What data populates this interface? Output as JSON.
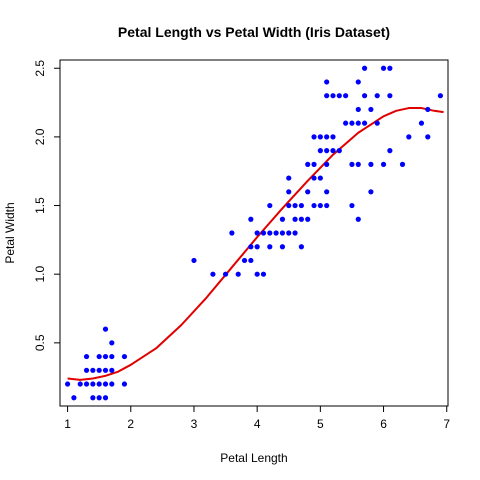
{
  "chart_data": {
    "type": "scatter",
    "title": "Petal Length vs Petal Width (Iris Dataset)",
    "xlabel": "Petal Length",
    "ylabel": "Petal Width",
    "xlim": [
      0.88,
      7.02
    ],
    "ylim": [
      0.04,
      2.56
    ],
    "xticks": [
      1,
      2,
      3,
      4,
      5,
      6,
      7
    ],
    "yticks": [
      0.5,
      1.0,
      1.5,
      2.0,
      2.5
    ],
    "ytick_labels": [
      "0.5",
      "1.0",
      "1.5",
      "2.0",
      "2.5"
    ],
    "grid": false,
    "point_color": "#0000ff",
    "line_color": "#e00000",
    "points": [
      [
        1.0,
        0.2
      ],
      [
        1.1,
        0.1
      ],
      [
        1.2,
        0.2
      ],
      [
        1.3,
        0.2
      ],
      [
        1.3,
        0.3
      ],
      [
        1.3,
        0.4
      ],
      [
        1.4,
        0.2
      ],
      [
        1.4,
        0.3
      ],
      [
        1.4,
        0.1
      ],
      [
        1.5,
        0.2
      ],
      [
        1.5,
        0.1
      ],
      [
        1.5,
        0.4
      ],
      [
        1.5,
        0.3
      ],
      [
        1.6,
        0.2
      ],
      [
        1.6,
        0.4
      ],
      [
        1.6,
        0.6
      ],
      [
        1.6,
        0.1
      ],
      [
        1.7,
        0.2
      ],
      [
        1.7,
        0.4
      ],
      [
        1.7,
        0.5
      ],
      [
        1.7,
        0.3
      ],
      [
        1.9,
        0.2
      ],
      [
        1.9,
        0.4
      ],
      [
        1.6,
        0.3
      ],
      [
        3.0,
        1.1
      ],
      [
        3.3,
        1.0
      ],
      [
        3.5,
        1.0
      ],
      [
        3.6,
        1.3
      ],
      [
        3.7,
        1.0
      ],
      [
        3.8,
        1.1
      ],
      [
        3.9,
        1.1
      ],
      [
        3.9,
        1.2
      ],
      [
        3.9,
        1.4
      ],
      [
        4.0,
        1.0
      ],
      [
        4.0,
        1.2
      ],
      [
        4.0,
        1.3
      ],
      [
        4.1,
        1.0
      ],
      [
        4.1,
        1.3
      ],
      [
        4.2,
        1.2
      ],
      [
        4.2,
        1.3
      ],
      [
        4.2,
        1.5
      ],
      [
        4.3,
        1.3
      ],
      [
        4.4,
        1.2
      ],
      [
        4.4,
        1.3
      ],
      [
        4.4,
        1.4
      ],
      [
        4.5,
        1.3
      ],
      [
        4.5,
        1.5
      ],
      [
        4.5,
        1.6
      ],
      [
        4.5,
        1.7
      ],
      [
        4.6,
        1.3
      ],
      [
        4.6,
        1.4
      ],
      [
        4.6,
        1.5
      ],
      [
        4.7,
        1.2
      ],
      [
        4.7,
        1.4
      ],
      [
        4.7,
        1.5
      ],
      [
        4.8,
        1.4
      ],
      [
        4.8,
        1.8
      ],
      [
        4.8,
        1.6
      ],
      [
        4.9,
        1.5
      ],
      [
        4.9,
        1.8
      ],
      [
        4.9,
        2.0
      ],
      [
        5.0,
        1.5
      ],
      [
        5.0,
        1.7
      ],
      [
        5.0,
        2.0
      ],
      [
        5.1,
        1.5
      ],
      [
        5.1,
        1.6
      ],
      [
        5.1,
        1.8
      ],
      [
        5.1,
        1.9
      ],
      [
        5.1,
        2.0
      ],
      [
        5.1,
        2.3
      ],
      [
        5.1,
        2.4
      ],
      [
        5.2,
        2.0
      ],
      [
        5.2,
        2.3
      ],
      [
        5.3,
        1.9
      ],
      [
        5.3,
        2.3
      ],
      [
        5.4,
        2.1
      ],
      [
        5.4,
        2.3
      ],
      [
        5.5,
        1.8
      ],
      [
        5.5,
        2.1
      ],
      [
        5.5,
        1.5
      ],
      [
        5.6,
        1.4
      ],
      [
        5.6,
        1.8
      ],
      [
        5.6,
        2.1
      ],
      [
        5.6,
        2.2
      ],
      [
        5.6,
        2.4
      ],
      [
        5.7,
        2.1
      ],
      [
        5.7,
        2.3
      ],
      [
        5.7,
        2.5
      ],
      [
        5.8,
        1.8
      ],
      [
        5.8,
        2.2
      ],
      [
        5.8,
        1.6
      ],
      [
        5.9,
        2.1
      ],
      [
        5.9,
        2.3
      ],
      [
        6.0,
        1.8
      ],
      [
        6.0,
        2.5
      ],
      [
        6.1,
        1.9
      ],
      [
        6.1,
        2.3
      ],
      [
        6.1,
        2.5
      ],
      [
        6.3,
        1.8
      ],
      [
        6.4,
        2.0
      ],
      [
        6.6,
        2.1
      ],
      [
        6.7,
        2.0
      ],
      [
        6.7,
        2.2
      ],
      [
        6.9,
        2.3
      ],
      [
        5.0,
        1.9
      ],
      [
        5.2,
        1.9
      ],
      [
        4.9,
        1.7
      ]
    ],
    "fit_line": {
      "x": [
        1.0,
        1.2,
        1.4,
        1.6,
        1.8,
        2.0,
        2.4,
        2.8,
        3.2,
        3.6,
        4.0,
        4.4,
        4.8,
        5.2,
        5.6,
        6.0,
        6.2,
        6.4,
        6.6,
        6.8,
        6.95
      ],
      "y": [
        0.24,
        0.23,
        0.24,
        0.26,
        0.29,
        0.34,
        0.46,
        0.63,
        0.83,
        1.05,
        1.27,
        1.48,
        1.68,
        1.87,
        2.03,
        2.15,
        2.19,
        2.21,
        2.21,
        2.19,
        2.18
      ]
    }
  }
}
